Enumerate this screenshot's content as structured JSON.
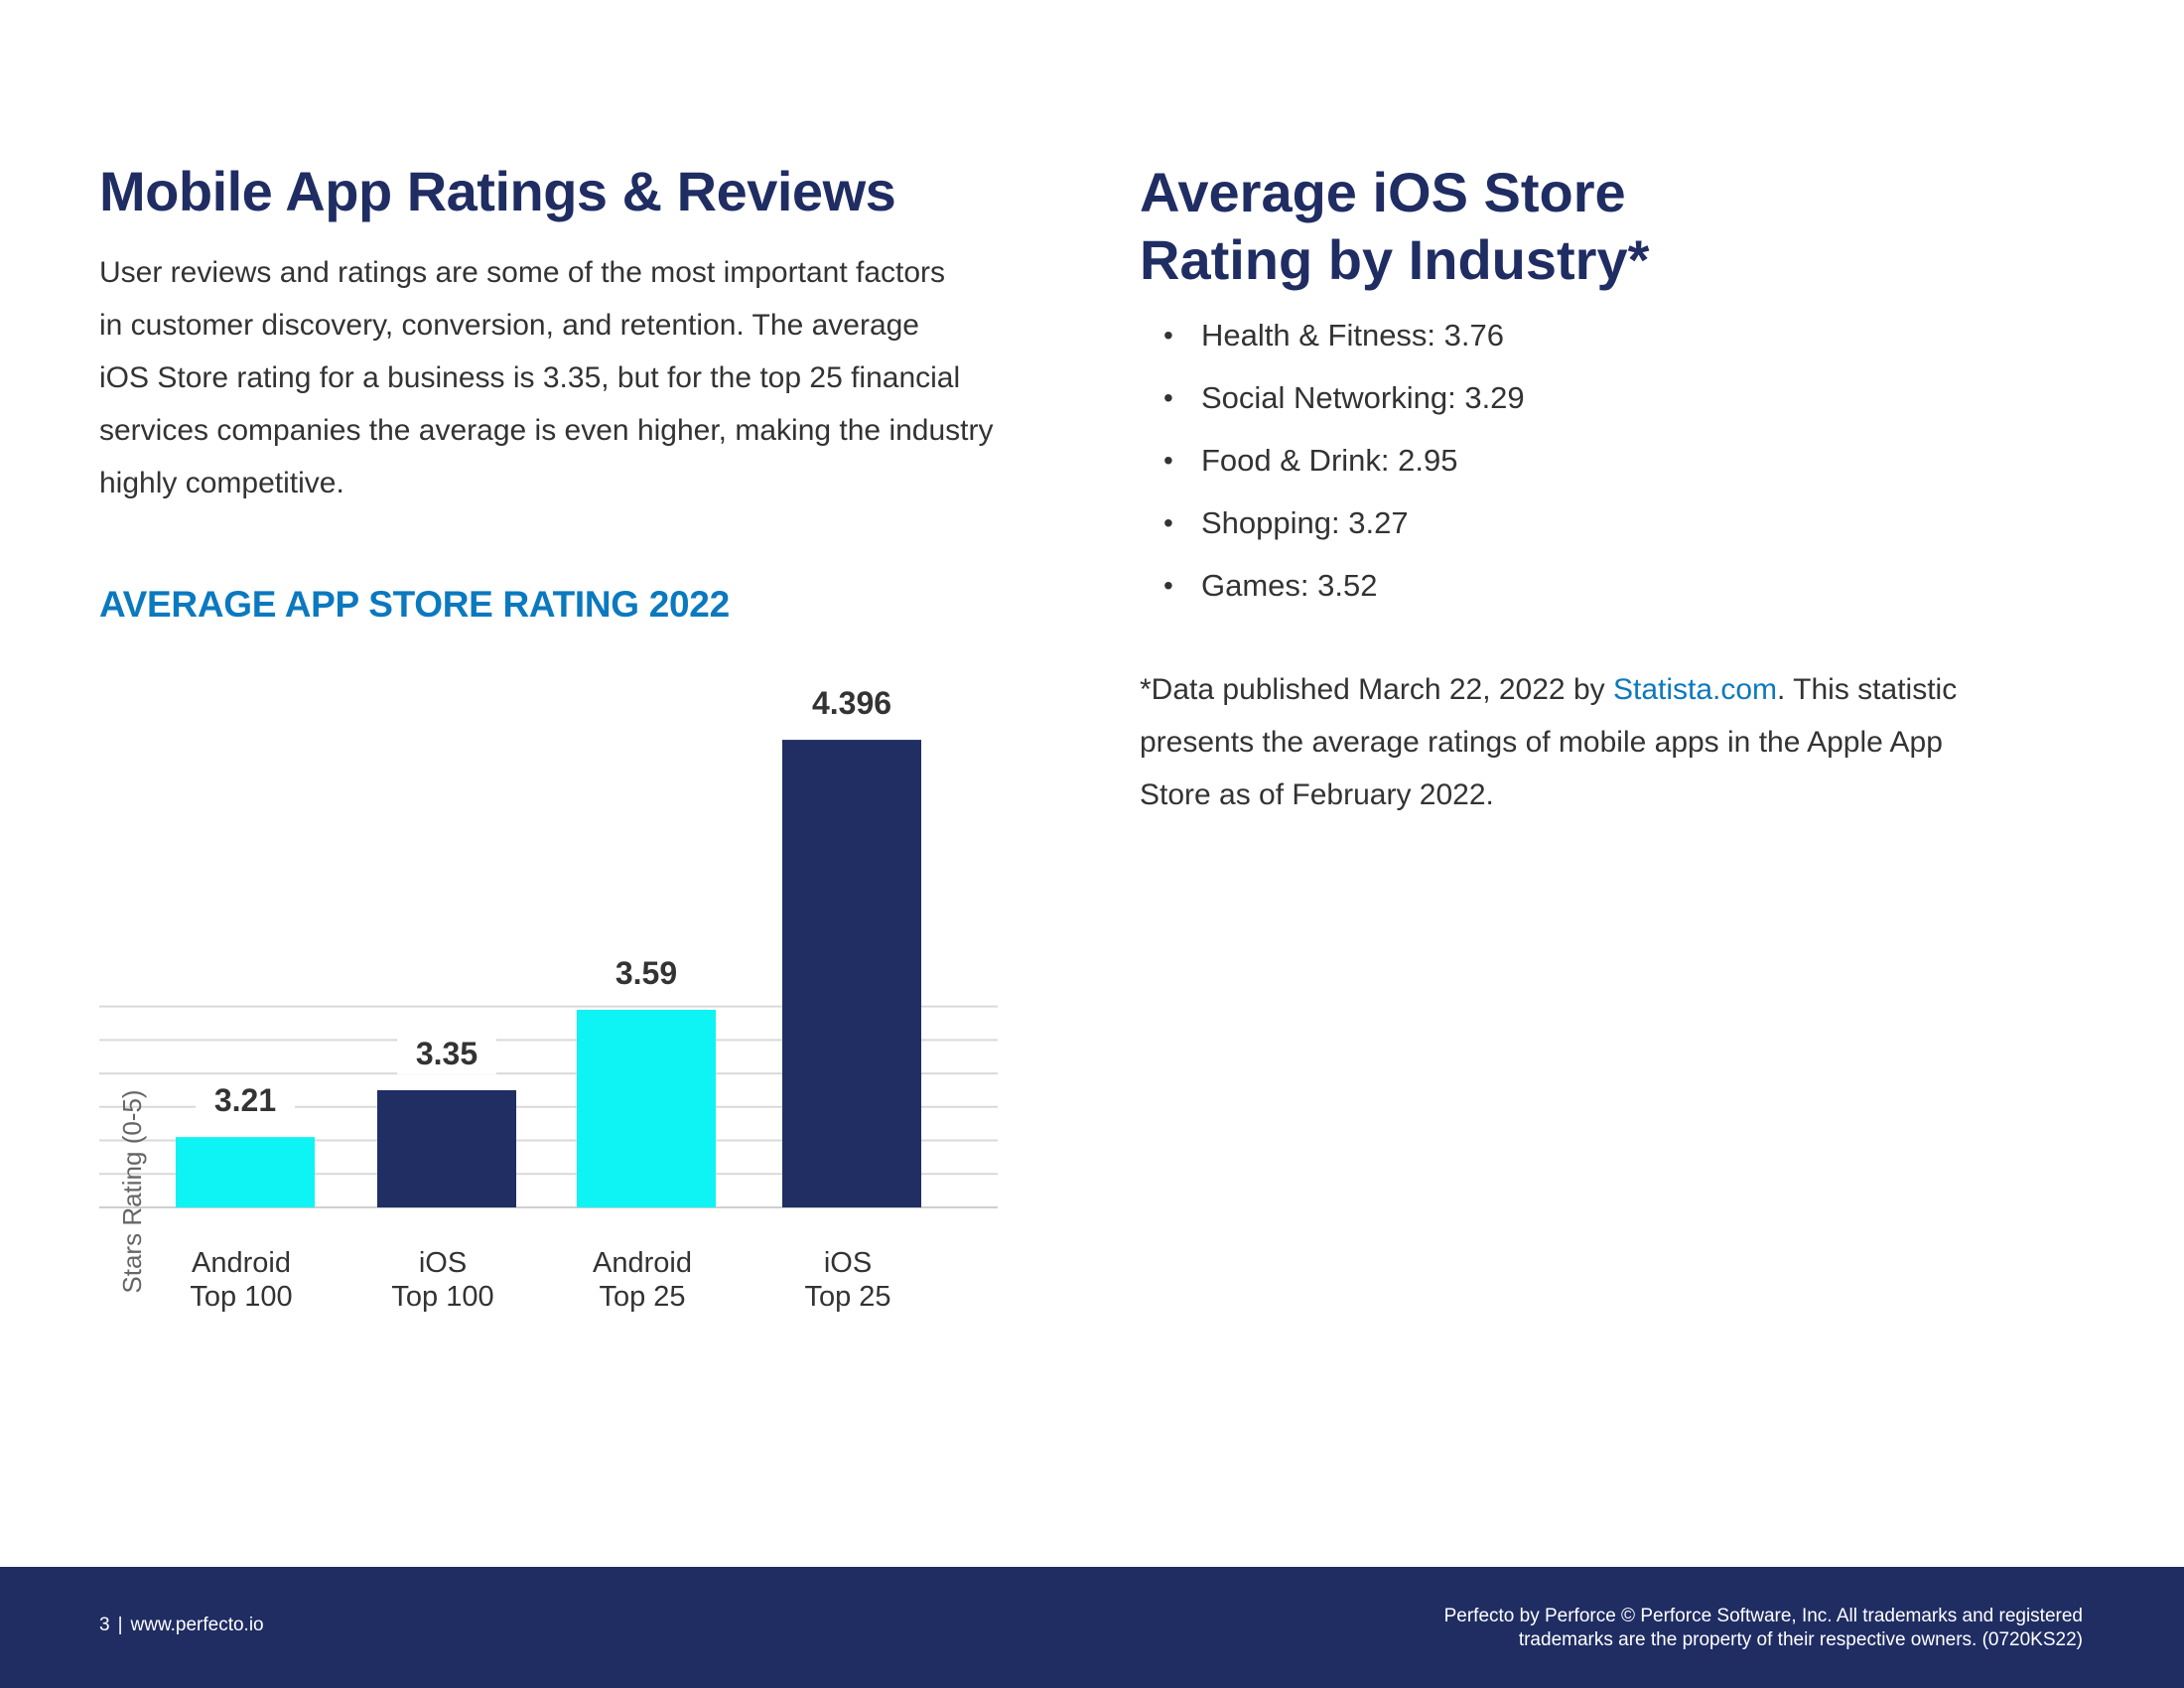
{
  "left": {
    "title": "Mobile App Ratings & Reviews",
    "intro_lines": [
      "User reviews and ratings are some of the most important factors",
      "in customer discovery, conversion, and retention. The average",
      "iOS Store rating for a business is 3.35, but for the top 25 financial",
      "services companies the average is even higher, making the industry",
      "highly competitive."
    ]
  },
  "chart_data": {
    "type": "bar",
    "title": "AVERAGE APP STORE RATING 2022",
    "ylabel": "Stars Rating (0-5)",
    "xlabel": "",
    "categories": [
      [
        "Android",
        "Top 100"
      ],
      [
        "iOS",
        "Top 100"
      ],
      [
        "Android",
        "Top 25"
      ],
      [
        "iOS",
        "Top 25"
      ]
    ],
    "values": [
      3.21,
      3.35,
      3.59,
      4.396
    ],
    "value_labels": [
      "3.21",
      "3.35",
      "3.59",
      "4.396"
    ],
    "colors": [
      "#0ef4f4",
      "#202e63",
      "#0ef4f4",
      "#202e63"
    ],
    "ylim": [
      3.0,
      4.5
    ],
    "grid_values": [
      3.0,
      3.1,
      3.2,
      3.3,
      3.4,
      3.5,
      3.6
    ],
    "grid": true,
    "legend": "none"
  },
  "right": {
    "title_line1": "Average iOS Store",
    "title_line2": "Rating by Industry*",
    "bullet_symbol": "•",
    "industries": [
      "Health & Fitness: 3.76",
      "Social Networking: 3.29",
      "Food & Drink: 2.95",
      "Shopping: 3.27",
      "Games: 3.52"
    ],
    "footnote": {
      "prefix": "*Data published March 22, 2022 by ",
      "link_text": "Statista.com",
      "suffix_line1": ". This statistic",
      "line2": "presents the average ratings of mobile apps in the Apple App",
      "line3": "Store as of February 2022."
    }
  },
  "footer": {
    "page_number": "3",
    "separator": "|",
    "website": "www.perfecto.io",
    "copyright_line1": "Perfecto by Perforce © Perforce Software, Inc. All trademarks and registered",
    "copyright_line2": "trademarks are the property of their respective owners. (0720KS22)"
  },
  "colors": {
    "navy": "#1f2d63",
    "cyan": "#0ef4f4",
    "accent_blue": "#0b79bf",
    "grid": "#d9d9d9"
  }
}
